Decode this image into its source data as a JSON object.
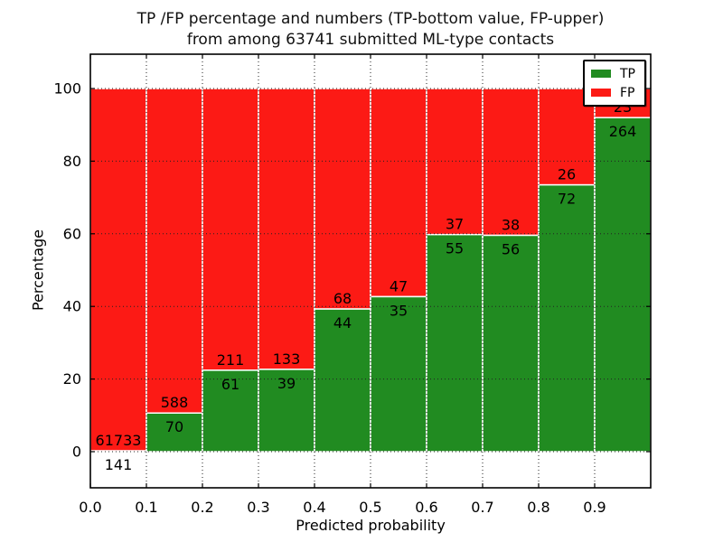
{
  "chart_data": {
    "type": "bar",
    "stacked": true,
    "normalized": "percent",
    "title_lines": [
      "TP /FP percentage and numbers (TP-bottom value, FP-upper)",
      "from among 63741 submitted ML-type contacts"
    ],
    "xlabel": "Predicted probability",
    "ylabel": "Percentage",
    "total_contacts": 63741,
    "bin_edges": [
      0.0,
      0.1,
      0.2,
      0.3,
      0.4,
      0.5,
      0.6,
      0.7,
      0.8,
      0.9,
      1.0
    ],
    "x_ticks": [
      0.0,
      0.1,
      0.2,
      0.3,
      0.4,
      0.5,
      0.6,
      0.7,
      0.8,
      0.9
    ],
    "x_tick_labels": [
      "0.0",
      "0.1",
      "0.2",
      "0.3",
      "0.4",
      "0.5",
      "0.6",
      "0.7",
      "0.8",
      "0.9"
    ],
    "y_ticks": [
      0,
      20,
      40,
      60,
      80,
      100
    ],
    "y_tick_labels": [
      "0",
      "20",
      "40",
      "60",
      "80",
      "100"
    ],
    "xlim": [
      0.0,
      1.0
    ],
    "ylim": [
      -10,
      109.5
    ],
    "grid": {
      "visible": true,
      "style": "dotted",
      "color": "#222222"
    },
    "series": [
      {
        "name": "TP",
        "position": "bottom",
        "color": "#218b21",
        "counts": [
          141,
          70,
          61,
          39,
          44,
          35,
          55,
          56,
          72,
          264
        ]
      },
      {
        "name": "FP",
        "position": "top",
        "color": "#fc1a15",
        "counts": [
          61733,
          588,
          211,
          133,
          68,
          47,
          37,
          38,
          26,
          23
        ]
      }
    ],
    "legend": {
      "position": "upper right",
      "entries": [
        {
          "label": "TP",
          "color": "#218b21"
        },
        {
          "label": "FP",
          "color": "#fc1a15"
        }
      ]
    },
    "bar_edge_color": "#ffffff",
    "frame_color": "#000000",
    "text_color": "#000000"
  }
}
